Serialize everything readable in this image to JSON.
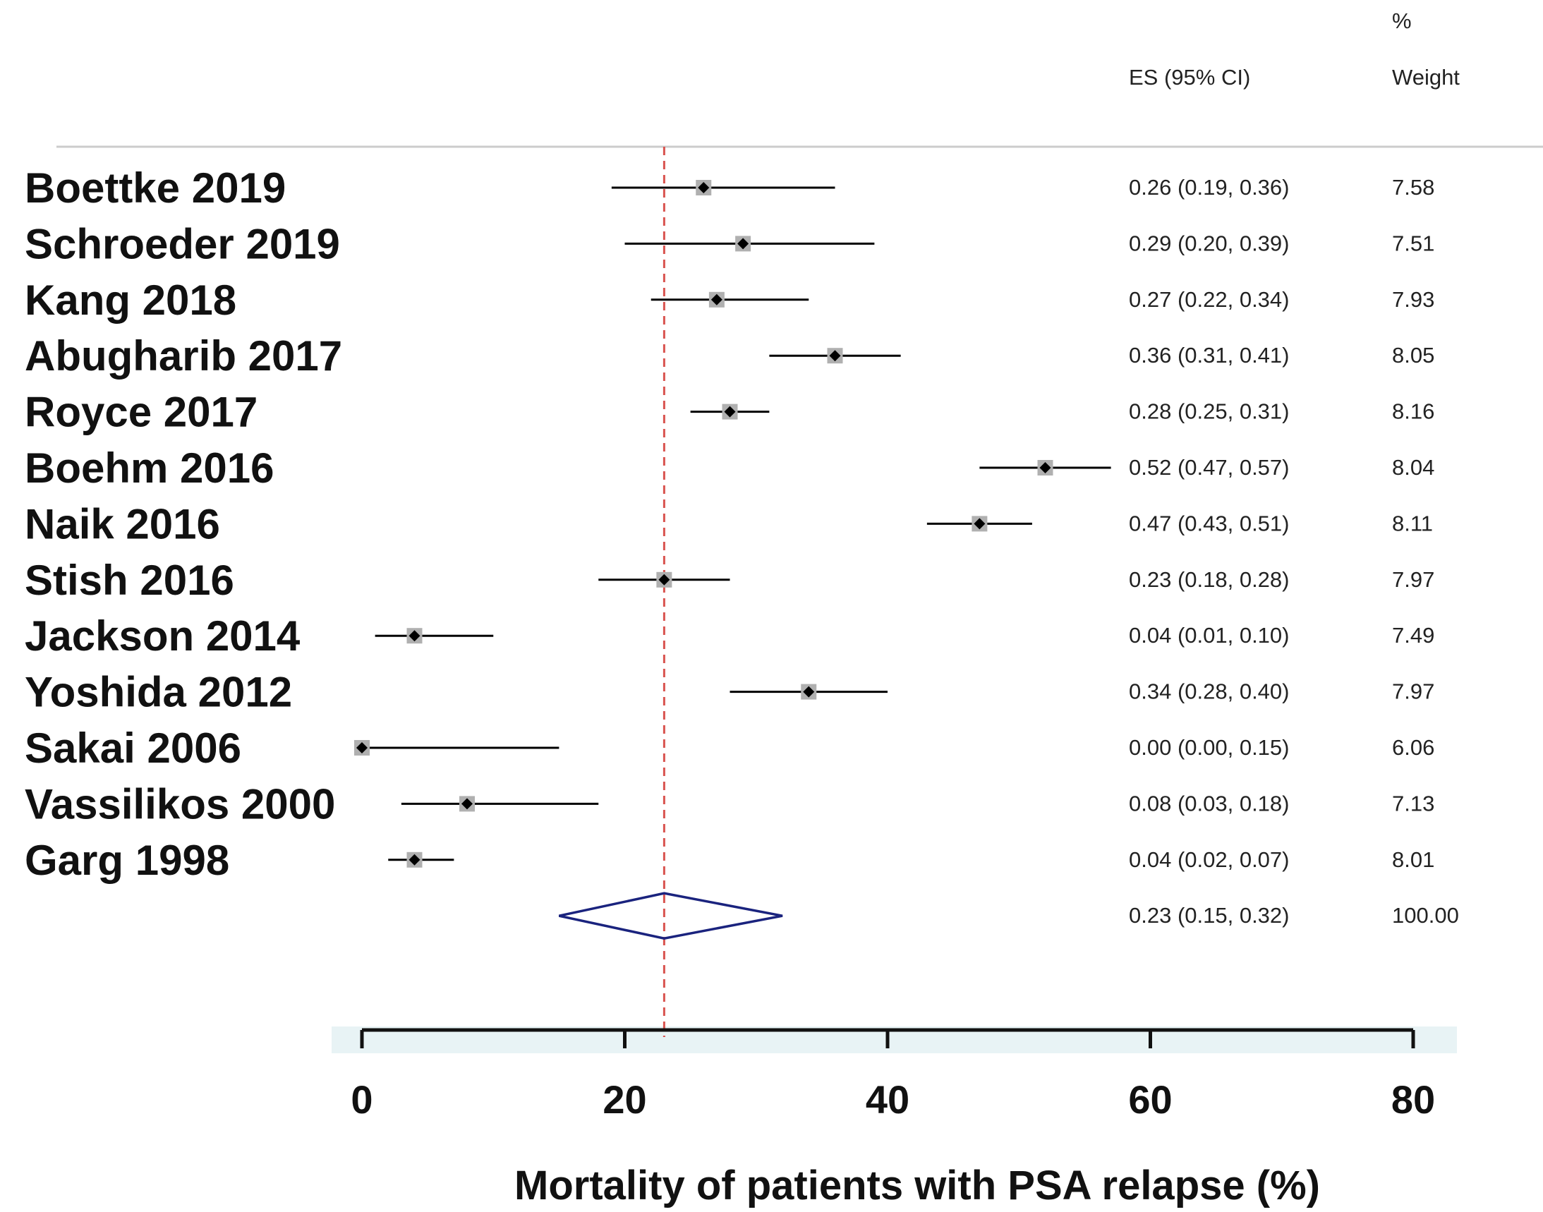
{
  "chart_data": {
    "type": "forest",
    "xlabel": "Mortality of patients with PSA relapse (%)",
    "xlim": [
      0,
      80
    ],
    "x_ticks": [
      0,
      20,
      40,
      60,
      80
    ],
    "x_tick_labels": [
      "0",
      "20",
      "40",
      "60",
      "80"
    ],
    "reference_line": 23,
    "headers": {
      "es": "ES (95% CI)",
      "weight_top": "%",
      "weight_bottom": "Weight"
    },
    "studies": [
      {
        "name": "Boettke 2019",
        "es": 26,
        "lo": 19,
        "hi": 36,
        "es_text": "0.26 (0.19, 0.36)",
        "weight": "7.58"
      },
      {
        "name": "Schroeder 2019",
        "es": 29,
        "lo": 20,
        "hi": 39,
        "es_text": "0.29 (0.20, 0.39)",
        "weight": "7.51"
      },
      {
        "name": "Kang 2018",
        "es": 27,
        "lo": 22,
        "hi": 34,
        "es_text": "0.27 (0.22, 0.34)",
        "weight": "7.93"
      },
      {
        "name": "Abugharib 2017",
        "es": 36,
        "lo": 31,
        "hi": 41,
        "es_text": "0.36 (0.31, 0.41)",
        "weight": "8.05"
      },
      {
        "name": "Royce 2017",
        "es": 28,
        "lo": 25,
        "hi": 31,
        "es_text": "0.28 (0.25, 0.31)",
        "weight": "8.16"
      },
      {
        "name": "Boehm 2016",
        "es": 52,
        "lo": 47,
        "hi": 57,
        "es_text": "0.52 (0.47, 0.57)",
        "weight": "8.04"
      },
      {
        "name": "Naik 2016",
        "es": 47,
        "lo": 43,
        "hi": 51,
        "es_text": "0.47 (0.43, 0.51)",
        "weight": "8.11"
      },
      {
        "name": "Stish 2016",
        "es": 23,
        "lo": 18,
        "hi": 28,
        "es_text": "0.23 (0.18, 0.28)",
        "weight": "7.97"
      },
      {
        "name": "Jackson 2014",
        "es": 4,
        "lo": 1,
        "hi": 10,
        "es_text": "0.04 (0.01, 0.10)",
        "weight": "7.49"
      },
      {
        "name": "Yoshida 2012",
        "es": 34,
        "lo": 28,
        "hi": 40,
        "es_text": "0.34 (0.28, 0.40)",
        "weight": "7.97"
      },
      {
        "name": "Sakai 2006",
        "es": 0,
        "lo": 0,
        "hi": 15,
        "es_text": "0.00 (0.00, 0.15)",
        "weight": "6.06"
      },
      {
        "name": "Vassilikos 2000",
        "es": 8,
        "lo": 3,
        "hi": 18,
        "es_text": "0.08 (0.03, 0.18)",
        "weight": "7.13"
      },
      {
        "name": "Garg 1998",
        "es": 4,
        "lo": 2,
        "hi": 7,
        "es_text": "0.04 (0.02, 0.07)",
        "weight": "8.01"
      }
    ],
    "overall": {
      "es": 23,
      "lo": 15,
      "hi": 32,
      "es_text": "0.23 (0.15, 0.32)",
      "weight": "100.00"
    },
    "colors": {
      "reference_line": "#d9534f",
      "diamond": "#1a237e",
      "marker": "#000000",
      "weight_box": "#b0b0b0",
      "axis_band": "#e8f3f5",
      "header_rule": "#cccccc"
    }
  }
}
